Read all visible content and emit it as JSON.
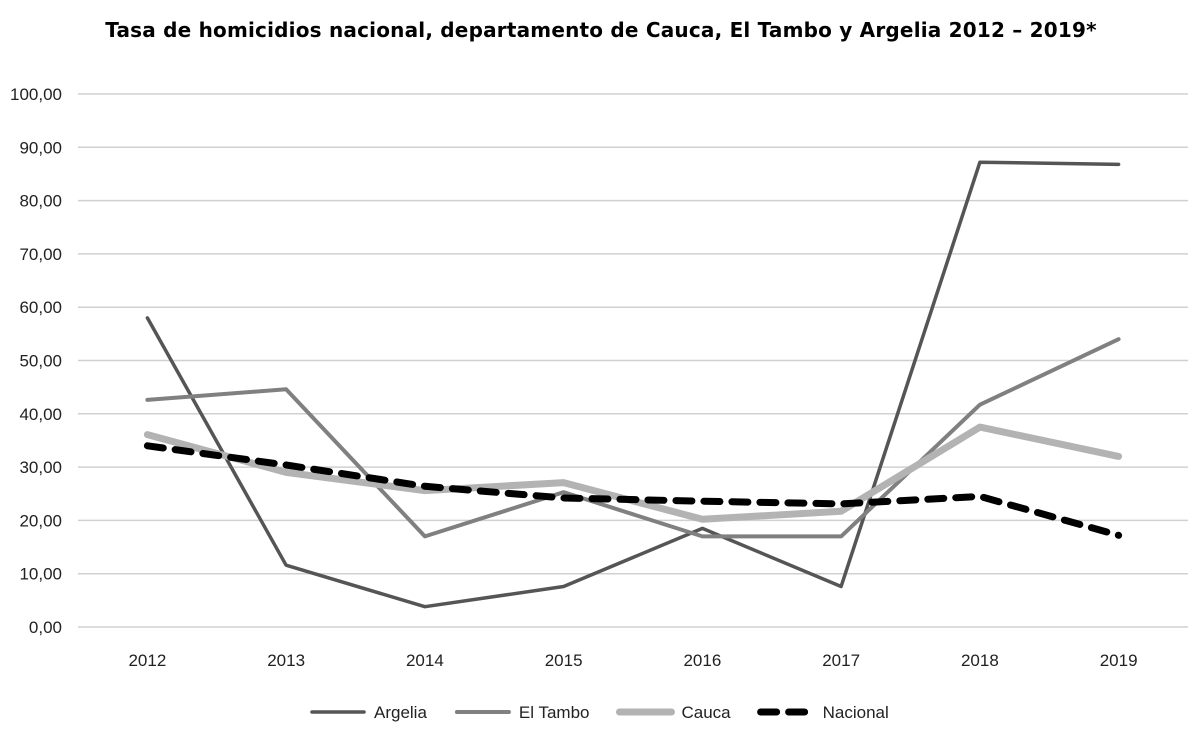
{
  "chart_data": {
    "type": "line",
    "title": "Tasa de homicidios nacional, departamento  de Cauca, El Tambo y Argelia 2012 – 2019*",
    "xlabel": "",
    "ylabel": "",
    "categories": [
      "2012",
      "2013",
      "2014",
      "2015",
      "2016",
      "2017",
      "2018",
      "2019"
    ],
    "ylim": [
      0,
      100
    ],
    "yticks": [
      "0,00",
      "10,00",
      "20,00",
      "30,00",
      "40,00",
      "50,00",
      "60,00",
      "70,00",
      "80,00",
      "90,00",
      "100,00"
    ],
    "grid": "horizontal",
    "legend_position": "bottom",
    "series": [
      {
        "name": "Argelia",
        "values": [
          58.0,
          11.6,
          3.8,
          7.6,
          18.5,
          7.6,
          87.2,
          86.8
        ],
        "color": "#555555",
        "style": "solid-thin"
      },
      {
        "name": "El Tambo",
        "values": [
          42.6,
          44.6,
          17.0,
          25.3,
          17.0,
          17.0,
          41.7,
          54.0
        ],
        "color": "#808080",
        "style": "solid-medium"
      },
      {
        "name": "Cauca",
        "values": [
          36.1,
          29.0,
          25.6,
          27.1,
          20.2,
          21.7,
          37.5,
          32.0
        ],
        "color": "#b3b3b3",
        "style": "solid-thick"
      },
      {
        "name": "Nacional",
        "values": [
          34.0,
          30.4,
          26.4,
          24.2,
          23.6,
          23.1,
          24.5,
          17.2
        ],
        "color": "#000000",
        "style": "dashed-thick"
      }
    ]
  }
}
